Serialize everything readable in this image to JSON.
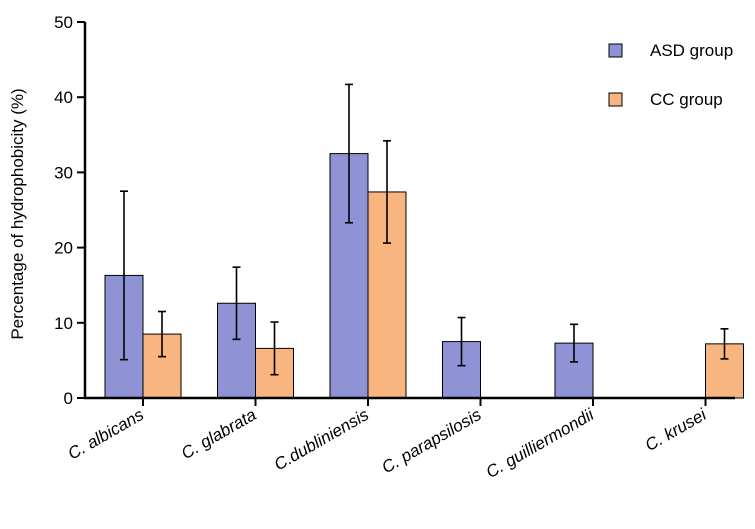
{
  "chart_data": {
    "type": "bar",
    "ylabel": "Percentage of hydrophobicity (%)",
    "ylim": [
      0,
      50
    ],
    "yticks": [
      0,
      10,
      20,
      30,
      40,
      50
    ],
    "grid": false,
    "legend_position": "top-right",
    "categories": [
      "C. albicans",
      "C. glabrata",
      "C.dubliniensis",
      "C. parapsilosis",
      "C. guilliermondii",
      "C. krusei"
    ],
    "category_labels": [
      {
        "prefix": "C. ",
        "name": "albicans"
      },
      {
        "prefix": "C. ",
        "name": "glabrata"
      },
      {
        "prefix": "C.",
        "name": "dubliniensis"
      },
      {
        "prefix": "C. ",
        "name": "parapsilosis"
      },
      {
        "prefix": "C. ",
        "name": "guilliermondii"
      },
      {
        "prefix": "C. ",
        "name": "krusei"
      }
    ],
    "series": [
      {
        "name": "ASD group",
        "color": "#8f93d6",
        "values": [
          16.3,
          12.6,
          32.5,
          7.5,
          7.3,
          null
        ],
        "error": [
          11.2,
          4.8,
          9.2,
          3.2,
          2.5,
          null
        ]
      },
      {
        "name": "CC group",
        "color": "#f9b57f",
        "values": [
          8.5,
          6.6,
          27.4,
          null,
          null,
          7.2
        ],
        "error": [
          3.0,
          3.5,
          6.8,
          null,
          null,
          2.0
        ]
      }
    ]
  }
}
